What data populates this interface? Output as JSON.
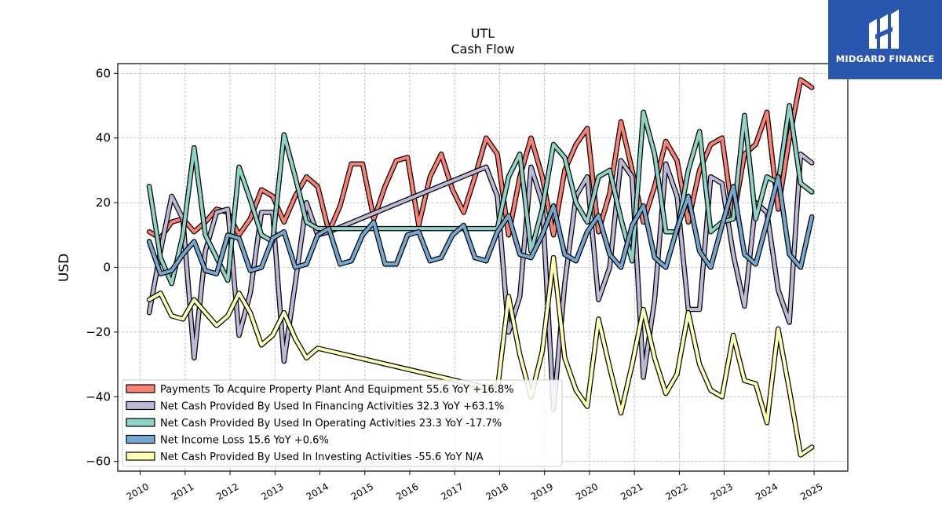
{
  "title": "UTL",
  "subtitle": "Cash Flow",
  "logo": {
    "text": "MIDGARD FINANCE",
    "background": "#2a56b0"
  },
  "chart_data": {
    "type": "line",
    "ylabel": "USD",
    "xlabel": "",
    "ylim": [
      -63,
      63
    ],
    "xlim": [
      2009.5,
      2025.75
    ],
    "yticks": [
      60,
      40,
      20,
      0,
      -20,
      -40,
      -60
    ],
    "ytick_labels": [
      "60",
      "40",
      "20",
      "0",
      "−20",
      "−40",
      "−60"
    ],
    "xticks": [
      "2010",
      "2011",
      "2012",
      "2013",
      "2014",
      "2015",
      "2016",
      "2017",
      "2018",
      "2019",
      "2020",
      "2021",
      "2022",
      "2023",
      "2024",
      "2025"
    ],
    "grid": true,
    "legend_position": "lower-left",
    "series": [
      {
        "name": "Payments To Acquire Property Plant And Equipment",
        "legend": "Payments To Acquire Property Plant And Equipment  55.6 YoY +16.8%",
        "color": "#fa8072",
        "points": [
          [
            2010.2,
            11
          ],
          [
            2010.45,
            9
          ],
          [
            2010.7,
            14
          ],
          [
            2010.95,
            15
          ],
          [
            2011.2,
            11
          ],
          [
            2011.45,
            14
          ],
          [
            2011.7,
            18
          ],
          [
            2011.95,
            17
          ],
          [
            2012.2,
            10
          ],
          [
            2012.45,
            15
          ],
          [
            2012.7,
            24
          ],
          [
            2012.95,
            22
          ],
          [
            2013.2,
            14
          ],
          [
            2013.45,
            22
          ],
          [
            2013.7,
            28
          ],
          [
            2013.95,
            25
          ],
          [
            2014.2,
            11
          ],
          [
            2014.45,
            19
          ],
          [
            2014.7,
            32
          ],
          [
            2014.95,
            32
          ],
          [
            2015.2,
            15
          ],
          [
            2015.45,
            25
          ],
          [
            2015.7,
            33
          ],
          [
            2015.95,
            34
          ],
          [
            2016.2,
            13
          ],
          [
            2016.45,
            28
          ],
          [
            2016.7,
            35
          ],
          [
            2016.95,
            24
          ],
          [
            2017.2,
            17
          ],
          [
            2017.45,
            28
          ],
          [
            2017.7,
            40
          ],
          [
            2017.95,
            35
          ],
          [
            2018.2,
            10
          ],
          [
            2018.45,
            28
          ],
          [
            2018.7,
            40
          ],
          [
            2018.95,
            28
          ],
          [
            2019.2,
            10
          ],
          [
            2019.45,
            30
          ],
          [
            2019.7,
            38
          ],
          [
            2019.95,
            43
          ],
          [
            2020.2,
            11
          ],
          [
            2020.45,
            23
          ],
          [
            2020.7,
            45
          ],
          [
            2020.95,
            30
          ],
          [
            2021.2,
            14
          ],
          [
            2021.45,
            25
          ],
          [
            2021.7,
            39
          ],
          [
            2021.95,
            33
          ],
          [
            2022.2,
            14
          ],
          [
            2022.45,
            30
          ],
          [
            2022.7,
            38
          ],
          [
            2022.95,
            40
          ],
          [
            2023.2,
            15
          ],
          [
            2023.45,
            35
          ],
          [
            2023.7,
            38
          ],
          [
            2023.95,
            48
          ],
          [
            2024.2,
            18
          ],
          [
            2024.45,
            40
          ],
          [
            2024.7,
            58
          ],
          [
            2024.95,
            55.6
          ]
        ]
      },
      {
        "name": "Net Cash Provided By Used In Financing Activities",
        "legend": "Net Cash Provided By Used In Financing Activities  32.3 YoY +63.1%",
        "color": "#bcb8d8",
        "points": [
          [
            2010.2,
            -14
          ],
          [
            2010.45,
            5
          ],
          [
            2010.7,
            22
          ],
          [
            2010.95,
            15
          ],
          [
            2011.2,
            -28
          ],
          [
            2011.45,
            5
          ],
          [
            2011.7,
            17
          ],
          [
            2011.95,
            18
          ],
          [
            2012.2,
            -21
          ],
          [
            2012.45,
            -8
          ],
          [
            2012.7,
            17
          ],
          [
            2012.95,
            17
          ],
          [
            2013.2,
            -29
          ],
          [
            2013.45,
            -5
          ],
          [
            2013.7,
            20
          ],
          [
            2013.95,
            10
          ],
          [
            2014.2,
            11
          ],
          [
            2017.7,
            31
          ],
          [
            2017.95,
            22
          ],
          [
            2018.2,
            -20
          ],
          [
            2018.45,
            -9
          ],
          [
            2018.7,
            31
          ],
          [
            2018.95,
            20
          ],
          [
            2019.2,
            -44
          ],
          [
            2019.45,
            -5
          ],
          [
            2019.7,
            22
          ],
          [
            2019.95,
            28
          ],
          [
            2020.2,
            -10
          ],
          [
            2020.45,
            0
          ],
          [
            2020.7,
            33
          ],
          [
            2020.95,
            28
          ],
          [
            2021.2,
            -34
          ],
          [
            2021.45,
            -10
          ],
          [
            2021.7,
            32
          ],
          [
            2021.95,
            22
          ],
          [
            2022.2,
            -13
          ],
          [
            2022.45,
            -13
          ],
          [
            2022.7,
            28
          ],
          [
            2022.95,
            26
          ],
          [
            2023.2,
            4
          ],
          [
            2023.45,
            -12
          ],
          [
            2023.7,
            20
          ],
          [
            2023.95,
            17
          ],
          [
            2024.2,
            -7
          ],
          [
            2024.45,
            -17
          ],
          [
            2024.7,
            35
          ],
          [
            2024.95,
            32.3
          ]
        ]
      },
      {
        "name": "Net Cash Provided By Used In Operating Activities",
        "legend": "Net Cash Provided By Used In Operating Activities  23.3 YoY -17.7%",
        "color": "#8dd3c7",
        "points": [
          [
            2010.2,
            25
          ],
          [
            2010.45,
            3
          ],
          [
            2010.7,
            -5
          ],
          [
            2010.95,
            10
          ],
          [
            2011.2,
            37
          ],
          [
            2011.45,
            10
          ],
          [
            2011.7,
            3
          ],
          [
            2011.95,
            -4
          ],
          [
            2012.2,
            31
          ],
          [
            2012.45,
            21
          ],
          [
            2012.7,
            10
          ],
          [
            2012.95,
            8
          ],
          [
            2013.2,
            41
          ],
          [
            2013.45,
            28
          ],
          [
            2013.7,
            14
          ],
          [
            2013.95,
            12
          ],
          [
            2014.2,
            12
          ],
          [
            2017.95,
            12
          ],
          [
            2018.2,
            28
          ],
          [
            2018.45,
            35
          ],
          [
            2018.7,
            5
          ],
          [
            2018.95,
            18
          ],
          [
            2019.2,
            38
          ],
          [
            2019.45,
            34
          ],
          [
            2019.7,
            20
          ],
          [
            2019.95,
            14
          ],
          [
            2020.2,
            28
          ],
          [
            2020.45,
            30
          ],
          [
            2020.7,
            15
          ],
          [
            2020.95,
            2
          ],
          [
            2021.2,
            48
          ],
          [
            2021.45,
            35
          ],
          [
            2021.7,
            11
          ],
          [
            2021.95,
            11
          ],
          [
            2022.2,
            30
          ],
          [
            2022.45,
            42
          ],
          [
            2022.7,
            11
          ],
          [
            2022.95,
            14
          ],
          [
            2023.2,
            15
          ],
          [
            2023.45,
            47
          ],
          [
            2023.7,
            15
          ],
          [
            2023.95,
            28
          ],
          [
            2024.2,
            26
          ],
          [
            2024.45,
            50
          ],
          [
            2024.7,
            26
          ],
          [
            2024.95,
            23.3
          ]
        ]
      },
      {
        "name": "Net Income Loss",
        "legend": "Net Income Loss  15.6 YoY +0.6%",
        "color": "#73a9d1",
        "points": [
          [
            2010.2,
            8
          ],
          [
            2010.45,
            -2
          ],
          [
            2010.7,
            -1
          ],
          [
            2010.95,
            4
          ],
          [
            2011.2,
            8
          ],
          [
            2011.45,
            -1
          ],
          [
            2011.7,
            -2
          ],
          [
            2011.95,
            10
          ],
          [
            2012.2,
            9
          ],
          [
            2012.45,
            -1
          ],
          [
            2012.7,
            0
          ],
          [
            2012.95,
            9
          ],
          [
            2013.2,
            11
          ],
          [
            2013.45,
            0
          ],
          [
            2013.7,
            1
          ],
          [
            2013.95,
            10
          ],
          [
            2014.2,
            12
          ],
          [
            2014.45,
            1
          ],
          [
            2014.7,
            2
          ],
          [
            2014.95,
            10
          ],
          [
            2015.2,
            14
          ],
          [
            2015.45,
            1
          ],
          [
            2015.7,
            1
          ],
          [
            2015.95,
            10
          ],
          [
            2016.2,
            11
          ],
          [
            2016.45,
            2
          ],
          [
            2016.7,
            3
          ],
          [
            2016.95,
            10
          ],
          [
            2017.2,
            13
          ],
          [
            2017.45,
            3
          ],
          [
            2017.7,
            2
          ],
          [
            2017.95,
            11
          ],
          [
            2018.2,
            16
          ],
          [
            2018.45,
            4
          ],
          [
            2018.7,
            3
          ],
          [
            2018.95,
            10
          ],
          [
            2019.2,
            19
          ],
          [
            2019.45,
            4
          ],
          [
            2019.7,
            2
          ],
          [
            2019.95,
            11
          ],
          [
            2020.2,
            16
          ],
          [
            2020.45,
            4
          ],
          [
            2020.7,
            0
          ],
          [
            2020.95,
            13
          ],
          [
            2021.2,
            19
          ],
          [
            2021.45,
            3
          ],
          [
            2021.7,
            0
          ],
          [
            2021.95,
            12
          ],
          [
            2022.2,
            22
          ],
          [
            2022.45,
            5
          ],
          [
            2022.7,
            0
          ],
          [
            2022.95,
            13
          ],
          [
            2023.2,
            25
          ],
          [
            2023.45,
            4
          ],
          [
            2023.7,
            1
          ],
          [
            2023.95,
            14
          ],
          [
            2024.2,
            28
          ],
          [
            2024.45,
            4
          ],
          [
            2024.7,
            0
          ],
          [
            2024.95,
            15.6
          ]
        ]
      },
      {
        "name": "Net Cash Provided By Used In Investing Activities",
        "legend": "Net Cash Provided By Used In Investing Activities  -55.6 YoY N/A",
        "color": "#ffffb3",
        "points": [
          [
            2010.2,
            -10
          ],
          [
            2010.45,
            -8
          ],
          [
            2010.7,
            -15
          ],
          [
            2010.95,
            -16
          ],
          [
            2011.2,
            -10
          ],
          [
            2011.45,
            -14
          ],
          [
            2011.7,
            -18
          ],
          [
            2011.95,
            -15
          ],
          [
            2012.2,
            -8
          ],
          [
            2012.45,
            -14
          ],
          [
            2012.7,
            -24
          ],
          [
            2012.95,
            -21
          ],
          [
            2013.2,
            -14
          ],
          [
            2013.45,
            -22
          ],
          [
            2013.7,
            -28
          ],
          [
            2013.95,
            -25
          ],
          [
            2017.95,
            -38
          ],
          [
            2018.2,
            -9
          ],
          [
            2018.45,
            -27
          ],
          [
            2018.7,
            -40
          ],
          [
            2018.95,
            -26
          ],
          [
            2019.2,
            3
          ],
          [
            2019.45,
            -28
          ],
          [
            2019.7,
            -38
          ],
          [
            2019.95,
            -43
          ],
          [
            2020.2,
            -16
          ],
          [
            2020.45,
            -31
          ],
          [
            2020.7,
            -45
          ],
          [
            2020.95,
            -30
          ],
          [
            2021.2,
            -13
          ],
          [
            2021.45,
            -28
          ],
          [
            2021.7,
            -39
          ],
          [
            2021.95,
            -33
          ],
          [
            2022.2,
            -14
          ],
          [
            2022.45,
            -30
          ],
          [
            2022.7,
            -38
          ],
          [
            2022.95,
            -40
          ],
          [
            2023.2,
            -21
          ],
          [
            2023.45,
            -35
          ],
          [
            2023.7,
            -36
          ],
          [
            2023.95,
            -48
          ],
          [
            2024.2,
            -19
          ],
          [
            2024.45,
            -38
          ],
          [
            2024.7,
            -58
          ],
          [
            2024.95,
            -55.6
          ]
        ]
      }
    ]
  }
}
